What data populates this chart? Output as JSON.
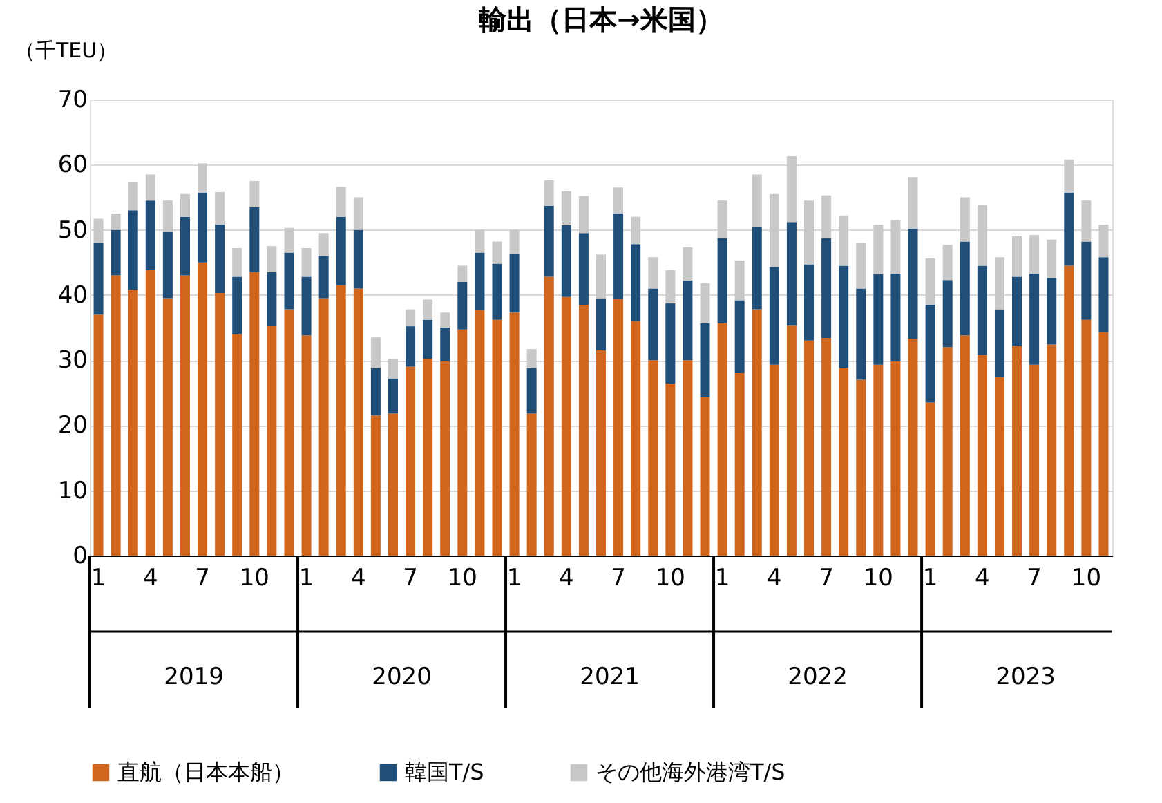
{
  "chart_data": {
    "type": "bar",
    "stacked": true,
    "title": "輸出（日本→米国）",
    "ylabel": "（千TEU）",
    "categories": [
      "1",
      null,
      null,
      "4",
      null,
      null,
      "7",
      null,
      null,
      "10",
      null,
      null,
      "1",
      null,
      null,
      "4",
      null,
      null,
      "7",
      null,
      null,
      "10",
      null,
      null,
      "1",
      null,
      null,
      "4",
      null,
      null,
      "7",
      null,
      null,
      "10",
      null,
      null,
      "1",
      null,
      null,
      "4",
      null,
      null,
      "7",
      null,
      null,
      "10",
      null,
      null,
      "1",
      null,
      null,
      "4",
      null,
      null,
      "7",
      null,
      null,
      "10",
      null
    ],
    "annotations": [
      "2019",
      "2020",
      "2021",
      "2022",
      "2023"
    ],
    "series": [
      {
        "name": "直航（日本本船）",
        "color": "#d2651c",
        "values": [
          37,
          43,
          40.8,
          43.8,
          39.5,
          43,
          45,
          40.3,
          34,
          43.5,
          35.2,
          37.8,
          33.8,
          39.5,
          41.5,
          41,
          21.5,
          21.8,
          29,
          30.2,
          29.8,
          34.7,
          37.7,
          36.2,
          37.3,
          21.8,
          42.8,
          39.7,
          38.5,
          31.5,
          39.4,
          36,
          30,
          26.4,
          30,
          24.3,
          35.7,
          28,
          37.8,
          29.3,
          35.3,
          33,
          33.4,
          28.8,
          27,
          29.3,
          29.8,
          33.3,
          23.5,
          32,
          33.8,
          30.8,
          27.4,
          32.2,
          29.3,
          32.4,
          44.5,
          36.2,
          34.3
        ]
      },
      {
        "name": "韓国T/S",
        "color": "#1f4e79",
        "values": [
          11,
          7,
          12.2,
          10.7,
          10.2,
          9,
          10.7,
          10.5,
          8.8,
          10,
          8.3,
          8.7,
          9,
          6.5,
          10.5,
          9,
          7.3,
          5.4,
          6.2,
          6,
          5.2,
          7.3,
          8.8,
          8.6,
          9,
          7,
          10.9,
          11,
          11,
          8,
          13.1,
          11.8,
          11,
          12.3,
          12.2,
          11.4,
          13,
          11.2,
          12.7,
          15,
          15.9,
          11.7,
          15.3,
          15.7,
          14,
          13.9,
          13.5,
          16.9,
          15,
          10.3,
          14.4,
          13.7,
          10.4,
          10.6,
          14,
          10.2,
          11.2,
          12,
          11.5
        ]
      },
      {
        "name": "その他海外港湾T/S",
        "color": "#c8c8c8",
        "values": [
          3.7,
          2.5,
          4.3,
          4,
          4.8,
          3.5,
          4.5,
          5,
          4.4,
          4,
          4,
          3.8,
          4.4,
          3.5,
          4.6,
          5,
          4.7,
          3,
          2.6,
          3.1,
          2.3,
          2.5,
          3.5,
          3.4,
          3.7,
          2.9,
          3.9,
          5.2,
          5.7,
          6.7,
          4,
          4.2,
          4.8,
          5.1,
          5.1,
          6.1,
          5.8,
          6.1,
          8,
          11.2,
          10.1,
          9.8,
          6.6,
          7.7,
          7,
          7.6,
          8.2,
          7.9,
          7.1,
          5.4,
          6.8,
          9.3,
          8,
          6.2,
          5.9,
          5.9,
          5.1,
          6.3,
          5
        ]
      }
    ],
    "ylim": [
      0,
      70
    ],
    "yticks": [
      0,
      10,
      20,
      30,
      40,
      50,
      60,
      70
    ],
    "grid": "y",
    "legend": "bottom"
  }
}
